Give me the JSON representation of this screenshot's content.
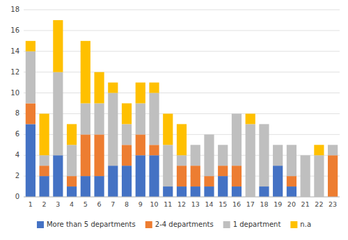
{
  "chart_data": {
    "type": "bar",
    "stacked": true,
    "grid": true,
    "legend": "bottom",
    "categories": [
      "1",
      "2",
      "3",
      "4",
      "5",
      "6",
      "7",
      "8",
      "9",
      "10",
      "11",
      "12",
      "13",
      "14",
      "15",
      "16",
      "17",
      "18",
      "19",
      "20",
      "21",
      "22",
      "23"
    ],
    "series": [
      {
        "name": "More than 5 departments",
        "color": "#4472c4",
        "values": [
          7,
          2,
          4,
          1,
          2,
          2,
          3,
          3,
          4,
          4,
          1,
          1,
          1,
          1,
          2,
          1,
          0,
          1,
          3,
          1,
          0,
          0,
          0
        ]
      },
      {
        "name": "2-4 departments",
        "color": "#ed7d31",
        "values": [
          2,
          1,
          0,
          1,
          4,
          4,
          0,
          2,
          2,
          1,
          0,
          2,
          2,
          1,
          1,
          2,
          0,
          0,
          0,
          1,
          0,
          0,
          4
        ]
      },
      {
        "name": "1 department",
        "color": "#bfbfbf",
        "values": [
          5,
          1,
          8,
          3,
          3,
          3,
          7,
          2,
          3,
          5,
          4,
          1,
          2,
          4,
          2,
          5,
          7,
          6,
          2,
          3,
          4,
          4,
          1
        ]
      },
      {
        "name": "n.a",
        "color": "#ffc000",
        "values": [
          1,
          4,
          5,
          2,
          6,
          3,
          1,
          2,
          2,
          1,
          3,
          3,
          0,
          0,
          0,
          0,
          1,
          0,
          0,
          0,
          0,
          1,
          0
        ]
      }
    ],
    "ylim": [
      0,
      18
    ],
    "yticks": [
      0,
      2,
      4,
      6,
      8,
      10,
      12,
      14,
      16,
      18
    ]
  }
}
